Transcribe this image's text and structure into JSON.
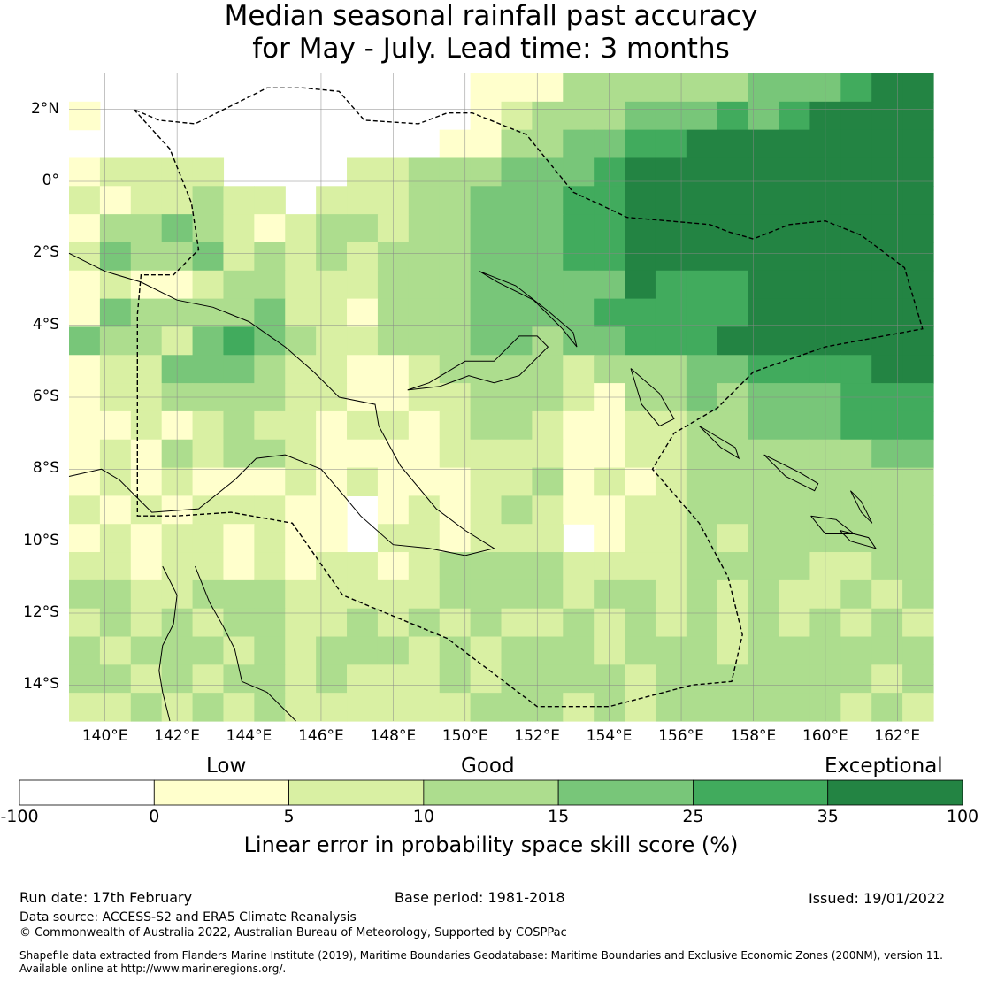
{
  "title": {
    "line1": "Median seasonal rainfall past accuracy",
    "line2": "for May - July. Lead time: 3 months"
  },
  "map": {
    "lon_range": [
      139.0,
      163.0
    ],
    "lat_range": [
      -15.0,
      3.0
    ],
    "grid_res_deg": 0.83,
    "lat_ticks": [
      2,
      0,
      -2,
      -4,
      -6,
      -8,
      -10,
      -12,
      -14
    ],
    "lat_tick_labels": [
      "2°N",
      "0°",
      "2°S",
      "4°S",
      "6°S",
      "8°S",
      "10°S",
      "12°S",
      "14°S"
    ],
    "lon_ticks": [
      140,
      142,
      144,
      146,
      148,
      150,
      152,
      154,
      156,
      158,
      160,
      162
    ],
    "lon_tick_labels": [
      "140°E",
      "142°E",
      "144°E",
      "146°E",
      "148°E",
      "150°E",
      "152°E",
      "154°E",
      "156°E",
      "158°E",
      "160°E",
      "162°E"
    ]
  },
  "skill_grid_rows": [
    "0000000000000111333333444566",
    "1000000000000123334445456666",
    "0000000000001133445566666666",
    "1222200002233344456666666666",
    "2122322022233444556666666666",
    "1334321233233444556666666666",
    "2433423232333444556666666666",
    "1211233222333444446555666666",
    "1433334221333444455555666666",
    "4332454322333443445556666666",
    "1224443221123333233344555566",
    "1223333221122333213343444555",
    "1121232212212332112233444555",
    "1213233211112222112233333344",
    "1212111212111223121233333333",
    "2121222110121232112233333333",
    "1212212110221222012232333333",
    "2212212122123333222233332233",
    "3322333222223333233232322323",
    "2323233223232322323232323232",
    "3233323233323233323332333333",
    "3323233232223233332333333323",
    "2232323222222333232333333232"
  ],
  "colorbar": {
    "categories": [
      "Low",
      "Good",
      "Exceptional"
    ],
    "tick_labels": [
      "-100",
      "0",
      "5",
      "10",
      "15",
      "25",
      "35",
      "100"
    ],
    "colors": [
      "#ffffff",
      "#ffffcc",
      "#d9f0a3",
      "#addd8e",
      "#78c679",
      "#41ab5d",
      "#238443"
    ],
    "title": "Linear error in probability space skill score (%)"
  },
  "footer": {
    "run_date": "Run date: 17th February",
    "base_period": "Base period: 1981-2018",
    "issued": "Issued: 19/01/2022",
    "data_source": "Data source: ACCESS-S2 and ERA5 Climate Reanalysis",
    "copyright": "© Commonwealth of Australia 2022, Australian Bureau of Meteorology, Supported by COSPPac",
    "shapefile_line1": "Shapefile data extracted from Flanders Marine Institute (2019), Maritime Boundaries Geodatabase: Maritime Boundaries and Exclusive Economic Zones (200NM), version 11.",
    "shapefile_line2": "Available online at http://www.marineregions.org/."
  },
  "eez_boundary_lonlat": [
    [
      140.8,
      2.0
    ],
    [
      141.8,
      0.9
    ],
    [
      142.4,
      -0.6
    ],
    [
      142.6,
      -1.9
    ],
    [
      141.9,
      -2.6
    ],
    [
      141.0,
      -2.6
    ],
    [
      140.9,
      -3.7
    ],
    [
      140.9,
      -9.3
    ],
    [
      142.0,
      -9.3
    ],
    [
      143.5,
      -9.2
    ],
    [
      145.2,
      -9.5
    ],
    [
      146.6,
      -11.5
    ],
    [
      149.5,
      -12.7
    ],
    [
      152.0,
      -14.6
    ],
    [
      154.0,
      -14.6
    ],
    [
      156.3,
      -14.0
    ],
    [
      157.4,
      -13.9
    ],
    [
      157.7,
      -12.6
    ],
    [
      157.3,
      -11.0
    ],
    [
      156.5,
      -9.5
    ],
    [
      155.2,
      -8.0
    ],
    [
      155.8,
      -7.0
    ],
    [
      157.0,
      -6.3
    ],
    [
      158.0,
      -5.3
    ],
    [
      160.0,
      -4.6
    ],
    [
      162.7,
      -4.1
    ],
    [
      162.2,
      -2.4
    ],
    [
      161.0,
      -1.5
    ],
    [
      160.0,
      -1.1
    ],
    [
      159.0,
      -1.2
    ],
    [
      158.0,
      -1.6
    ],
    [
      157.3,
      -1.4
    ],
    [
      156.8,
      -1.2
    ],
    [
      154.5,
      -1.0
    ],
    [
      153.0,
      -0.3
    ],
    [
      151.7,
      1.3
    ],
    [
      150.2,
      1.9
    ],
    [
      149.5,
      1.9
    ],
    [
      148.7,
      1.6
    ],
    [
      147.2,
      1.7
    ],
    [
      146.5,
      2.5
    ],
    [
      145.5,
      2.6
    ],
    [
      144.5,
      2.6
    ],
    [
      143.5,
      2.1
    ],
    [
      142.5,
      1.6
    ],
    [
      141.5,
      1.7
    ],
    [
      140.8,
      2.0
    ]
  ],
  "coastlines_lonlat": [
    [
      [
        139.0,
        -2.0
      ],
      [
        140.0,
        -2.5
      ],
      [
        141.0,
        -2.8
      ],
      [
        142.0,
        -3.3
      ],
      [
        143.0,
        -3.5
      ],
      [
        144.0,
        -3.9
      ],
      [
        145.0,
        -4.6
      ],
      [
        145.8,
        -5.3
      ],
      [
        146.5,
        -6.0
      ],
      [
        147.5,
        -6.2
      ],
      [
        147.6,
        -6.8
      ],
      [
        148.2,
        -7.9
      ],
      [
        149.2,
        -9.1
      ],
      [
        150.0,
        -9.7
      ],
      [
        150.8,
        -10.2
      ],
      [
        150.0,
        -10.4
      ],
      [
        149.0,
        -10.2
      ],
      [
        148.0,
        -10.1
      ],
      [
        147.1,
        -9.3
      ],
      [
        146.6,
        -8.7
      ],
      [
        146.0,
        -8.0
      ],
      [
        145.0,
        -7.6
      ],
      [
        144.2,
        -7.7
      ],
      [
        143.6,
        -8.3
      ],
      [
        142.6,
        -9.1
      ],
      [
        141.3,
        -9.2
      ],
      [
        140.4,
        -8.3
      ],
      [
        139.9,
        -8.0
      ],
      [
        139.0,
        -8.2
      ]
    ],
    [
      [
        148.4,
        -5.8
      ],
      [
        149.3,
        -5.7
      ],
      [
        150.1,
        -5.4
      ],
      [
        150.8,
        -5.6
      ],
      [
        151.5,
        -5.4
      ],
      [
        152.3,
        -4.6
      ],
      [
        152.0,
        -4.3
      ],
      [
        151.5,
        -4.3
      ],
      [
        150.8,
        -5.0
      ],
      [
        150.0,
        -5.0
      ],
      [
        149.0,
        -5.6
      ],
      [
        148.4,
        -5.8
      ]
    ],
    [
      [
        150.4,
        -2.5
      ],
      [
        151.4,
        -2.9
      ],
      [
        152.3,
        -3.6
      ],
      [
        153.0,
        -4.2
      ],
      [
        153.1,
        -4.6
      ],
      [
        152.7,
        -4.1
      ],
      [
        151.9,
        -3.3
      ],
      [
        150.9,
        -2.8
      ],
      [
        150.4,
        -2.5
      ]
    ],
    [
      [
        154.6,
        -5.2
      ],
      [
        155.4,
        -5.9
      ],
      [
        155.8,
        -6.6
      ],
      [
        155.4,
        -6.8
      ],
      [
        154.9,
        -6.2
      ],
      [
        154.6,
        -5.2
      ]
    ],
    [
      [
        156.5,
        -6.8
      ],
      [
        157.5,
        -7.4
      ],
      [
        157.6,
        -7.7
      ],
      [
        157.1,
        -7.4
      ],
      [
        156.5,
        -6.8
      ]
    ],
    [
      [
        158.3,
        -7.6
      ],
      [
        159.3,
        -8.1
      ],
      [
        159.8,
        -8.4
      ],
      [
        159.7,
        -8.6
      ],
      [
        158.9,
        -8.2
      ],
      [
        158.3,
        -7.6
      ]
    ],
    [
      [
        160.4,
        -9.7
      ],
      [
        161.2,
        -9.9
      ],
      [
        161.4,
        -10.2
      ],
      [
        160.7,
        -10.0
      ],
      [
        160.4,
        -9.7
      ]
    ],
    [
      [
        160.7,
        -8.6
      ],
      [
        161.0,
        -8.9
      ],
      [
        161.3,
        -9.5
      ],
      [
        161.0,
        -9.2
      ],
      [
        160.7,
        -8.6
      ]
    ],
    [
      [
        159.6,
        -9.3
      ],
      [
        160.3,
        -9.4
      ],
      [
        160.8,
        -9.8
      ],
      [
        160.0,
        -9.8
      ],
      [
        159.6,
        -9.3
      ]
    ],
    [
      [
        141.6,
        -10.7
      ],
      [
        142.0,
        -11.5
      ],
      [
        141.9,
        -12.3
      ],
      [
        141.6,
        -12.9
      ],
      [
        141.5,
        -13.6
      ],
      [
        141.6,
        -14.2
      ],
      [
        141.8,
        -15.0
      ]
    ],
    [
      [
        142.5,
        -10.7
      ],
      [
        142.9,
        -11.7
      ],
      [
        143.3,
        -12.4
      ],
      [
        143.6,
        -13.0
      ],
      [
        143.8,
        -13.9
      ],
      [
        144.5,
        -14.2
      ],
      [
        145.3,
        -15.0
      ]
    ]
  ]
}
